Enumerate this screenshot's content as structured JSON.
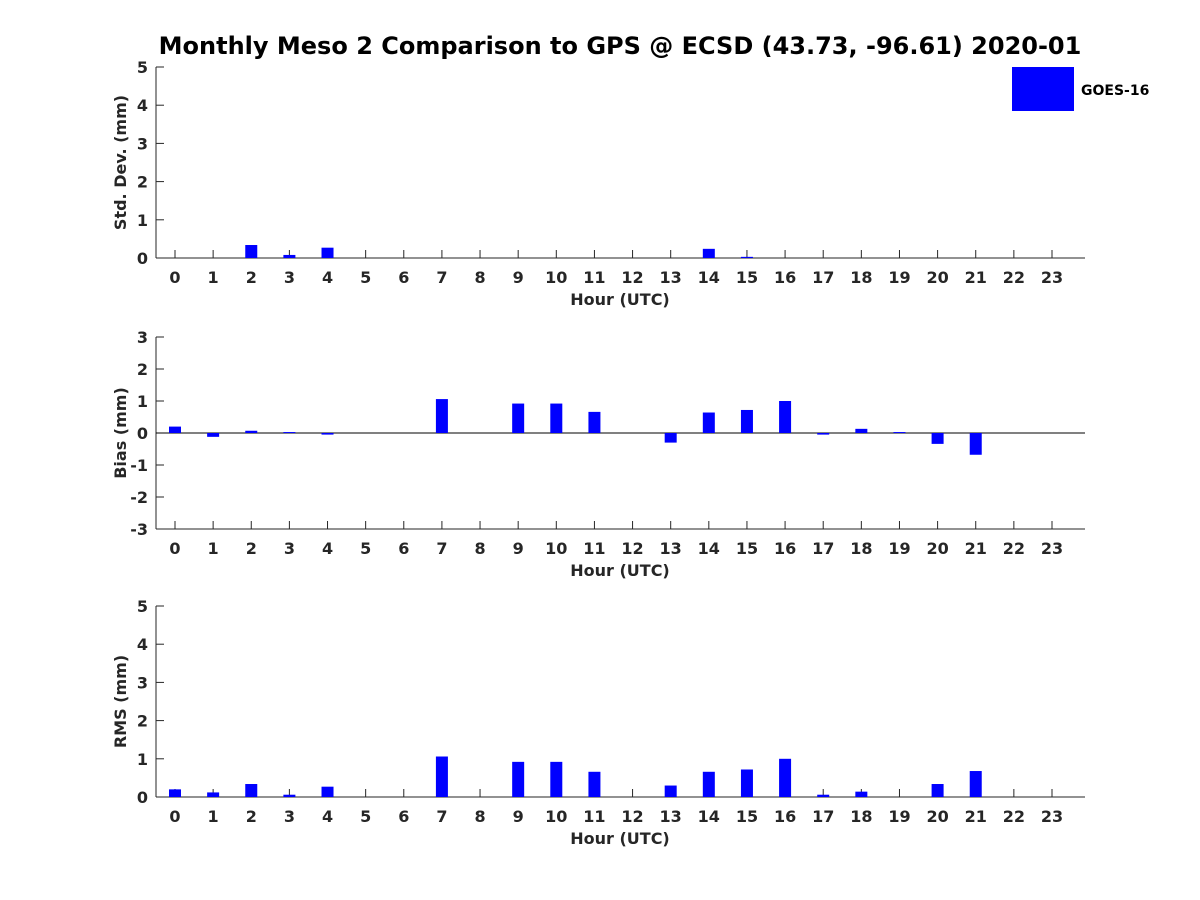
{
  "chart_data": {
    "type": "bar",
    "title": "Monthly Meso 2 Comparison to GPS @ ECSD (43.73, -96.61) 2020-01",
    "bar_color": "#0000ff",
    "legend": {
      "entries": [
        "GOES-16"
      ],
      "placement": "top-right"
    },
    "panels": [
      {
        "id": "std",
        "ylabel": "Std. Dev. (mm)",
        "xlabel": "Hour (UTC)",
        "ylim": [
          0,
          5
        ],
        "yticks": [
          0,
          1,
          2,
          3,
          4,
          5
        ],
        "categories": [
          0,
          1,
          2,
          3,
          4,
          5,
          6,
          7,
          8,
          9,
          10,
          11,
          12,
          13,
          14,
          15,
          16,
          17,
          18,
          19,
          20,
          21,
          22,
          23
        ],
        "series": [
          {
            "name": "GOES-16",
            "values": [
              0,
              0,
              0.34,
              0.08,
              0.27,
              0,
              0,
              0,
              0,
              0,
              0,
              0,
              0,
              0,
              0.24,
              0.03,
              0,
              0,
              0,
              0,
              0,
              0,
              0,
              0
            ]
          }
        ]
      },
      {
        "id": "bias",
        "ylabel": "Bias (mm)",
        "xlabel": "Hour (UTC)",
        "ylim": [
          -3,
          3
        ],
        "yticks": [
          -3,
          -2,
          -1,
          0,
          1,
          2,
          3
        ],
        "categories": [
          0,
          1,
          2,
          3,
          4,
          5,
          6,
          7,
          8,
          9,
          10,
          11,
          12,
          13,
          14,
          15,
          16,
          17,
          18,
          19,
          20,
          21,
          22,
          23
        ],
        "series": [
          {
            "name": "GOES-16",
            "values": [
              0.2,
              -0.12,
              0.07,
              0.03,
              -0.05,
              0,
              0,
              1.06,
              0,
              0.92,
              0.92,
              0.66,
              0,
              -0.3,
              0.64,
              0.72,
              1.0,
              -0.05,
              0.13,
              0.03,
              -0.34,
              -0.68,
              0,
              0
            ]
          }
        ]
      },
      {
        "id": "rms",
        "ylabel": "RMS (mm)",
        "xlabel": "Hour (UTC)",
        "ylim": [
          0,
          5
        ],
        "yticks": [
          0,
          1,
          2,
          3,
          4,
          5
        ],
        "categories": [
          0,
          1,
          2,
          3,
          4,
          5,
          6,
          7,
          8,
          9,
          10,
          11,
          12,
          13,
          14,
          15,
          16,
          17,
          18,
          19,
          20,
          21,
          22,
          23
        ],
        "series": [
          {
            "name": "GOES-16",
            "values": [
              0.2,
              0.12,
              0.34,
              0.06,
              0.27,
              0,
              0,
              1.06,
              0,
              0.92,
              0.92,
              0.66,
              0,
              0.3,
              0.66,
              0.72,
              1.0,
              0.06,
              0.14,
              0,
              0.34,
              0.68,
              0,
              0
            ]
          }
        ]
      }
    ]
  }
}
